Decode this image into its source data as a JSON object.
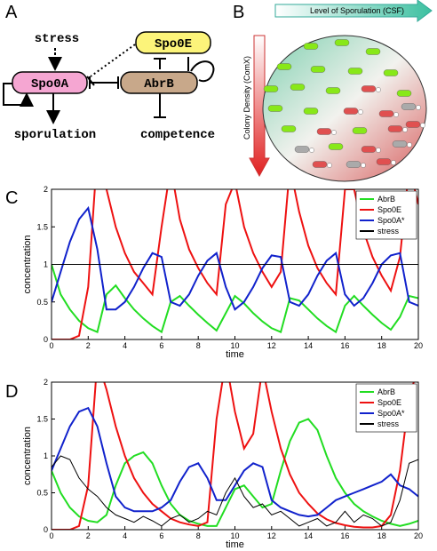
{
  "panel_a": {
    "label": "A",
    "nodes": [
      "Spo0A",
      "Spo0E",
      "AbrB"
    ],
    "stress": "stress",
    "sporulation": "sporulation",
    "competence": "competence"
  },
  "panel_b": {
    "label": "B",
    "top_arrow": "Level of Sporulation (CSF)",
    "side_arrow": "Colony Density (ComX)"
  },
  "chart_data": [
    {
      "type": "line",
      "panel_label": "C",
      "x_label": "time",
      "y_label": "concentration",
      "x": [
        0,
        0.5,
        1,
        1.5,
        2,
        2.5,
        3,
        3.5,
        4,
        4.5,
        5,
        5.5,
        6,
        6.5,
        7,
        7.5,
        8,
        8.5,
        9,
        9.5,
        10,
        10.5,
        11,
        11.5,
        12,
        12.5,
        13,
        13.5,
        14,
        14.5,
        15,
        15.5,
        16,
        16.5,
        17,
        17.5,
        18,
        18.5,
        19,
        19.5,
        20
      ],
      "series": [
        {
          "name": "AbrB",
          "color": "#22dd22",
          "values": [
            1.0,
            0.6,
            0.4,
            0.25,
            0.15,
            0.1,
            0.6,
            0.72,
            0.55,
            0.4,
            0.28,
            0.18,
            0.1,
            0.5,
            0.58,
            0.45,
            0.33,
            0.22,
            0.12,
            0.35,
            0.58,
            0.48,
            0.35,
            0.24,
            0.15,
            0.1,
            0.55,
            0.52,
            0.4,
            0.28,
            0.18,
            0.1,
            0.45,
            0.58,
            0.45,
            0.33,
            0.22,
            0.13,
            0.3,
            0.58,
            0.55
          ]
        },
        {
          "name": "Spo0E",
          "color": "#ee1111",
          "values": [
            0,
            0,
            0,
            0.05,
            0.7,
            2.5,
            2.0,
            1.5,
            1.15,
            0.9,
            0.75,
            0.6,
            1.5,
            2.3,
            1.6,
            1.2,
            0.95,
            0.75,
            0.6,
            1.8,
            2.1,
            1.5,
            1.15,
            0.9,
            0.7,
            0.9,
            2.3,
            1.7,
            1.25,
            0.95,
            0.75,
            0.6,
            2.0,
            2.0,
            1.45,
            1.1,
            0.85,
            0.65,
            1.1,
            2.3,
            1.8
          ]
        },
        {
          "name": "Spo0A*",
          "color": "#1122cc",
          "values": [
            0.5,
            0.9,
            1.3,
            1.6,
            1.75,
            1.2,
            0.4,
            0.4,
            0.5,
            0.7,
            0.95,
            1.15,
            1.1,
            0.5,
            0.45,
            0.6,
            0.85,
            1.05,
            1.15,
            0.7,
            0.4,
            0.5,
            0.7,
            0.95,
            1.12,
            1.1,
            0.5,
            0.45,
            0.6,
            0.85,
            1.05,
            1.15,
            0.6,
            0.45,
            0.55,
            0.75,
            1.0,
            1.12,
            1.15,
            0.5,
            0.45
          ]
        },
        {
          "name": "stress",
          "color": "#000000",
          "values": [
            1,
            1,
            1,
            1,
            1,
            1,
            1,
            1,
            1,
            1,
            1,
            1,
            1,
            1,
            1,
            1,
            1,
            1,
            1,
            1,
            1,
            1,
            1,
            1,
            1,
            1,
            1,
            1,
            1,
            1,
            1,
            1,
            1,
            1,
            1,
            1,
            1,
            1,
            1,
            1,
            1
          ]
        }
      ],
      "xlim": [
        0,
        20
      ],
      "ylim": [
        0,
        2
      ],
      "xticks": [
        0,
        2,
        4,
        6,
        8,
        10,
        12,
        14,
        16,
        18,
        20
      ],
      "yticks": [
        0,
        0.5,
        1,
        1.5,
        2
      ],
      "legend": "upper right"
    },
    {
      "type": "line",
      "panel_label": "D",
      "x_label": "time",
      "y_label": "concentration",
      "x": [
        0,
        0.5,
        1,
        1.5,
        2,
        2.5,
        3,
        3.5,
        4,
        4.5,
        5,
        5.5,
        6,
        6.5,
        7,
        7.5,
        8,
        8.5,
        9,
        9.5,
        10,
        10.5,
        11,
        11.5,
        12,
        12.5,
        13,
        13.5,
        14,
        14.5,
        15,
        15.5,
        16,
        16.5,
        17,
        17.5,
        18,
        18.5,
        19,
        19.5,
        20
      ],
      "series": [
        {
          "name": "AbrB",
          "color": "#22dd22",
          "values": [
            0.8,
            0.5,
            0.3,
            0.18,
            0.12,
            0.1,
            0.2,
            0.6,
            0.9,
            1.0,
            1.05,
            0.9,
            0.6,
            0.35,
            0.2,
            0.12,
            0.08,
            0.05,
            0.05,
            0.3,
            0.55,
            0.6,
            0.45,
            0.3,
            0.35,
            0.8,
            1.2,
            1.45,
            1.5,
            1.35,
            1.0,
            0.7,
            0.5,
            0.35,
            0.25,
            0.18,
            0.12,
            0.08,
            0.05,
            0.08,
            0.12
          ]
        },
        {
          "name": "Spo0E",
          "color": "#ee1111",
          "values": [
            0,
            0,
            0,
            0.05,
            0.6,
            2.3,
            1.9,
            1.4,
            1.0,
            0.7,
            0.5,
            0.35,
            0.25,
            0.15,
            0.1,
            0.07,
            0.05,
            0.1,
            1.5,
            2.3,
            1.6,
            1.1,
            1.3,
            2.2,
            1.6,
            1.1,
            0.75,
            0.5,
            0.35,
            0.22,
            0.14,
            0.09,
            0.06,
            0.04,
            0.03,
            0.03,
            0.05,
            0.2,
            0.8,
            1.8,
            2.2
          ]
        },
        {
          "name": "Spo0A*",
          "color": "#1122cc",
          "values": [
            0.8,
            1.1,
            1.4,
            1.6,
            1.65,
            1.4,
            0.9,
            0.45,
            0.3,
            0.25,
            0.25,
            0.25,
            0.3,
            0.4,
            0.65,
            0.85,
            0.9,
            0.7,
            0.4,
            0.4,
            0.6,
            0.8,
            0.9,
            0.85,
            0.4,
            0.3,
            0.25,
            0.2,
            0.18,
            0.2,
            0.3,
            0.4,
            0.45,
            0.5,
            0.55,
            0.6,
            0.65,
            0.75,
            0.6,
            0.55,
            0.45
          ]
        },
        {
          "name": "stress",
          "color": "#000000",
          "values": [
            0.85,
            1.0,
            0.95,
            0.7,
            0.55,
            0.45,
            0.3,
            0.2,
            0.15,
            0.1,
            0.18,
            0.12,
            0.05,
            0.15,
            0.2,
            0.1,
            0.15,
            0.25,
            0.2,
            0.5,
            0.7,
            0.45,
            0.3,
            0.35,
            0.2,
            0.25,
            0.15,
            0.05,
            0.1,
            0.15,
            0.05,
            0.1,
            0.25,
            0.1,
            0.2,
            0.15,
            0.05,
            0.1,
            0.4,
            0.9,
            0.95
          ]
        }
      ],
      "xlim": [
        0,
        20
      ],
      "ylim": [
        0,
        2
      ],
      "xticks": [
        0,
        2,
        4,
        6,
        8,
        10,
        12,
        14,
        16,
        18,
        20
      ],
      "yticks": [
        0,
        0.5,
        1,
        1.5,
        2
      ],
      "legend": "upper right"
    }
  ]
}
